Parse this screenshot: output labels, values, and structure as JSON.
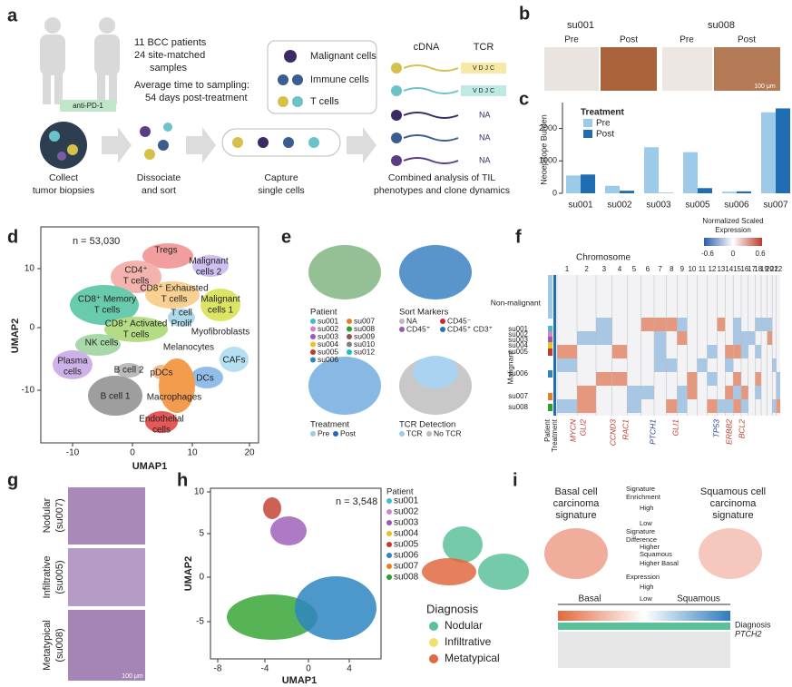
{
  "chart_data": {
    "type": "bar",
    "label": "c",
    "ylabel": "Neoepitope Burden",
    "categories": [
      "su001",
      "su002",
      "su003",
      "su005",
      "su006",
      "su007"
    ],
    "legend_title": "Treatment",
    "series": [
      {
        "name": "Pre",
        "color": "#9ecae9",
        "values": [
          550,
          230,
          1420,
          1270,
          50,
          2500
        ]
      },
      {
        "name": "Post",
        "color": "#1f6db2",
        "values": [
          580,
          80,
          10,
          160,
          60,
          2620
        ]
      }
    ],
    "ylim": [
      0,
      2800
    ],
    "yticks": [
      0,
      1000,
      2000
    ]
  },
  "panels": {
    "a": {
      "label": "a",
      "cohort": [
        "11 BCC patients",
        "24 site-matched",
        "samples"
      ],
      "timing": [
        "Average time to sampling:",
        "54 days post-treatment"
      ],
      "drug": "anti-PD-1",
      "steps": [
        [
          "Collect",
          "tumor biopsies"
        ],
        [
          "Dissociate",
          "and sort"
        ],
        [
          "Capture",
          "single cells"
        ],
        [
          "Combined analysis of TIL",
          "phenotypes and clone dynamics"
        ]
      ],
      "cell_types": [
        "Malignant cells",
        "Immune cells",
        "T cells"
      ],
      "columns": [
        "cDNA",
        "TCR"
      ],
      "vdjc": [
        "V D J C",
        "V D J C"
      ],
      "tcr_na": [
        "NA",
        "NA",
        "NA"
      ]
    },
    "b": {
      "label": "b",
      "samples": [
        "su001",
        "su008"
      ],
      "conditions": [
        "Pre",
        "Post",
        "Pre",
        "Post"
      ],
      "scale": "100 μm"
    },
    "d": {
      "label": "d",
      "n": "n = 53,030",
      "xlabel": "UMAP1",
      "ylabel": "UMAP2",
      "xticks": [
        -10,
        0,
        10,
        20
      ],
      "yticks": [
        -10,
        0,
        10
      ],
      "clusters": [
        [
          "Tregs"
        ],
        [
          "CD4⁺",
          "T cells"
        ],
        [
          "Malignant",
          "cells 2"
        ],
        [
          "CD8⁺ Exhausted",
          "T cells"
        ],
        [
          "CD8⁺ Memory",
          "T cells"
        ],
        [
          "Malignant",
          "cells 1"
        ],
        [
          "CD8⁺ Activated",
          "T cells"
        ],
        [
          "T cell",
          "Prolif"
        ],
        [
          "Myofibroblasts"
        ],
        [
          "NK cells"
        ],
        [
          "Melanocytes"
        ],
        [
          "CAFs"
        ],
        [
          "Plasma",
          "cells"
        ],
        [
          "B cell 2"
        ],
        [
          "pDCs"
        ],
        [
          "DCs"
        ],
        [
          "B cell 1"
        ],
        [
          "Macrophages"
        ],
        [
          "Endothelial",
          "cells"
        ]
      ]
    },
    "e": {
      "label": "e",
      "patient": {
        "title": "Patient",
        "items": [
          "su001",
          "su002",
          "su003",
          "su004",
          "su005",
          "su006",
          "su007",
          "su008",
          "su009",
          "su010",
          "su012"
        ],
        "colors": [
          "#3fbcd0",
          "#d982c8",
          "#9b59b6",
          "#e8c21f",
          "#c0392b",
          "#2e86c1",
          "#e67e22",
          "#2ca02c",
          "#8c564b",
          "#7f7f7f",
          "#17becf"
        ]
      },
      "sort": {
        "title": "Sort Markers",
        "items": [
          "NA",
          "CD45⁺",
          "CD45⁻",
          "CD45⁺ CD3⁺"
        ],
        "colors": [
          "#bbbbbb",
          "#9b59b6",
          "#d62728",
          "#1f77b4"
        ]
      },
      "treatment": {
        "title": "Treatment",
        "items": [
          "Pre",
          "Post"
        ],
        "colors": [
          "#9ecae9",
          "#1f6db2"
        ]
      },
      "tcr": {
        "title": "TCR Detection",
        "items": [
          "TCR",
          "No TCR"
        ],
        "colors": [
          "#9ecae9",
          "#bbbbbb"
        ]
      }
    },
    "f": {
      "label": "f",
      "colorbar_title": [
        "Normalized Scaled",
        "Expression"
      ],
      "colorbar_ticks": [
        "-0.6",
        "0",
        "0.6"
      ],
      "axis_title": "Chromosome",
      "chromosomes": [
        "1",
        "2",
        "3",
        "4",
        "5",
        "6",
        "7",
        "8",
        "9",
        "10",
        "11",
        "12",
        "13",
        "14",
        "15",
        "16",
        "17",
        "18",
        "19",
        "20",
        "21",
        "22"
      ],
      "groups": [
        "Non-malignant",
        "Malignant"
      ],
      "rows": [
        "su001",
        "su002",
        "su003",
        "su004",
        "su005",
        "su006",
        "su007",
        "su008"
      ],
      "annotations": [
        "Patient",
        "Treatment"
      ],
      "genes": [
        "MYCN",
        "GLI2",
        "CCND3",
        "RAC1",
        "PTCH1",
        "GLI1",
        "TP53",
        "ERBB2",
        "BCL2"
      ],
      "gene_colors": [
        "#c0392b",
        "#c0392b",
        "#c0392b",
        "#c0392b",
        "#2a3f9d",
        "#c0392b",
        "#2a3f9d",
        "#c0392b",
        "#c0392b"
      ]
    },
    "g": {
      "label": "g",
      "rows": [
        [
          "Nodular",
          "(su007)"
        ],
        [
          "Infiltrative",
          "(su005)"
        ],
        [
          "Metatypical",
          "(su008)"
        ]
      ],
      "scale": "100 μm"
    },
    "h": {
      "label": "h",
      "n": "n = 3,548",
      "xlabel": "UMAP1",
      "ylabel": "UMAP2",
      "xticks": [
        -8,
        -4,
        0,
        4
      ],
      "yticks": [
        -5,
        0,
        5,
        10
      ],
      "patient": {
        "title": "Patient",
        "items": [
          "su001",
          "su002",
          "su003",
          "su004",
          "su005",
          "su006",
          "su007",
          "su008"
        ],
        "colors": [
          "#3fbcd0",
          "#d982c8",
          "#9b59b6",
          "#e8c21f",
          "#c0392b",
          "#2e86c1",
          "#e67e22",
          "#2ca02c"
        ]
      },
      "diagnosis": {
        "title": "Diagnosis",
        "items": [
          "Nodular",
          "Infiltrative",
          "Metatypical"
        ],
        "colors": [
          "#5cc19a",
          "#f1e06a",
          "#e2693f"
        ]
      }
    },
    "i": {
      "label": "i",
      "titles": [
        [
          "Basal cell",
          "carcinoma",
          "signature"
        ],
        [
          "Squamous cell",
          "carcinoma",
          "signature"
        ]
      ],
      "enrichment": [
        "Signature",
        "Enrichment",
        "High",
        "Low"
      ],
      "difference": [
        "Signature",
        "Difference",
        "Higher",
        "Squamous",
        "Higher Basal"
      ],
      "expression": [
        "Expression",
        "High",
        "Low"
      ],
      "axis": [
        "Basal",
        "Squamous"
      ],
      "tracks": [
        "Diagnosis",
        "PTCH2"
      ]
    }
  }
}
